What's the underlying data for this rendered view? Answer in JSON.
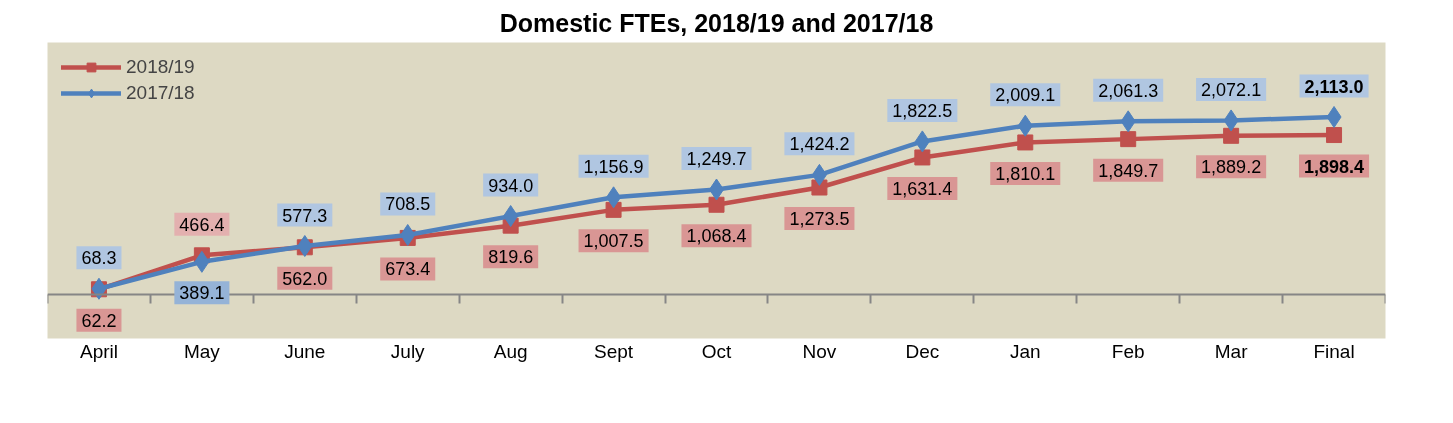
{
  "chart_data": {
    "type": "line",
    "title": "Domestic FTEs, 2018/19 and 2017/18",
    "categories": [
      "April",
      "May",
      "June",
      "July",
      "Aug",
      "Sept",
      "Oct",
      "Nov",
      "Dec",
      "Jan",
      "Feb",
      "Mar",
      "Final"
    ],
    "series": [
      {
        "name": "2018/19",
        "color": "#c0504d",
        "marker": "square",
        "values": [
          62.2,
          466.4,
          562.0,
          673.4,
          819.6,
          1007.5,
          1068.4,
          1273.5,
          1631.4,
          1810.1,
          1849.7,
          1889.2,
          1898.4
        ],
        "value_labels": [
          "62.2",
          "466.4",
          "562.0",
          "673.4",
          "819.6",
          "1,007.5",
          "1,068.4",
          "1,273.5",
          "1,631.4",
          "1,810.1",
          "1,849.7",
          "1,889.2",
          "1,898.4"
        ]
      },
      {
        "name": "2017/18",
        "color": "#4f81bd",
        "marker": "diamond",
        "values": [
          68.3,
          389.1,
          577.3,
          708.5,
          934.0,
          1156.9,
          1249.7,
          1424.2,
          1822.5,
          2009.1,
          2061.3,
          2072.1,
          2113.0
        ],
        "value_labels": [
          "68.3",
          "389.1",
          "577.3",
          "708.5",
          "934.0",
          "1,156.9",
          "1,249.7",
          "1,424.2",
          "1,822.5",
          "2,009.1",
          "2,061.3",
          "2,072.1",
          "2,113.0"
        ]
      }
    ],
    "ylim": [
      0,
      3000
    ],
    "tick_labels": "x",
    "grid": false,
    "legend": "top left",
    "line_style": "solid"
  }
}
